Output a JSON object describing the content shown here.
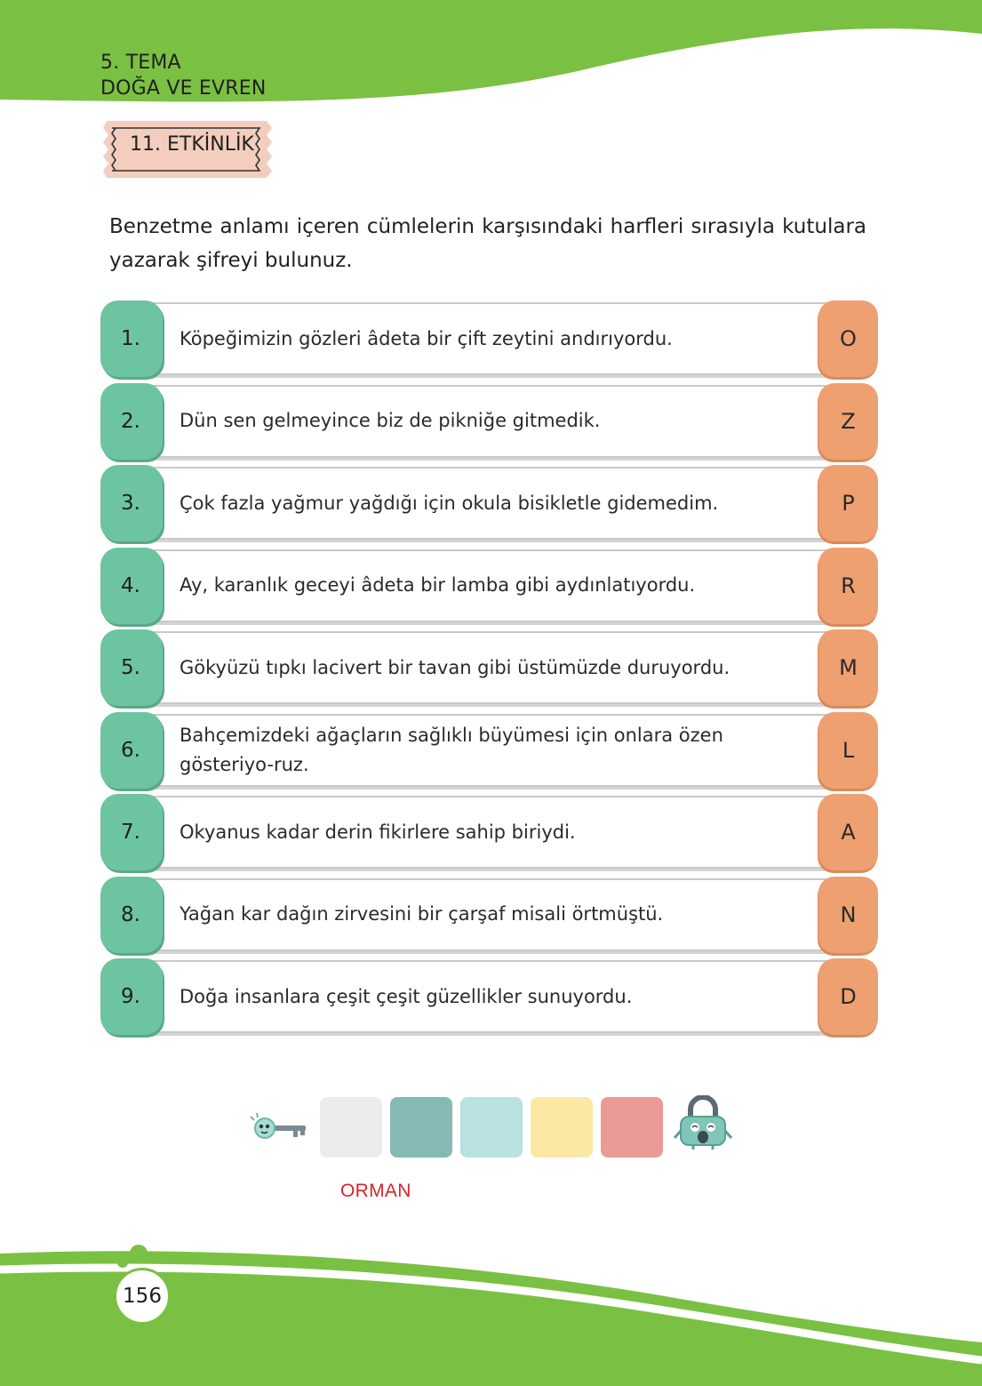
{
  "header": {
    "theme_line1": "5. TEMA",
    "theme_line2": "DOĞA VE EVREN"
  },
  "activity": {
    "label": "11. ETKİNLİK"
  },
  "instruction": "Benzetme anlamı içeren cümlelerin karşısındaki harfleri sırasıyla kutulara yazarak şifreyi bulunuz.",
  "items": [
    {
      "number": "1.",
      "sentence": "Köpeğimizin gözleri âdeta bir çift zeytini andırıyordu.",
      "letter": "O"
    },
    {
      "number": "2.",
      "sentence": "Dün sen gelmeyince biz de pikniğe gitmedik.",
      "letter": "Z"
    },
    {
      "number": "3.",
      "sentence": "Çok fazla yağmur yağdığı için okula bisikletle gidemedim.",
      "letter": "P"
    },
    {
      "number": "4.",
      "sentence": "Ay, karanlık geceyi âdeta bir lamba gibi aydınlatıyordu.",
      "letter": "R"
    },
    {
      "number": "5.",
      "sentence": "Gökyüzü tıpkı lacivert bir tavan gibi üstümüzde duruyordu.",
      "letter": "M"
    },
    {
      "number": "6.",
      "sentence": "Bahçemizdeki ağaçların sağlıklı büyümesi için onlara özen gösteriyo-ruz.",
      "letter": "L"
    },
    {
      "number": "7.",
      "sentence": "Okyanus kadar derin fikirlere sahip biriydi.",
      "letter": "A"
    },
    {
      "number": "8.",
      "sentence": "Yağan kar dağın zirvesini bir çarşaf misali örtmüştü.",
      "letter": "N"
    },
    {
      "number": "9.",
      "sentence": "Doğa insanlara çeşit çeşit güzellikler sunuyordu.",
      "letter": "D"
    }
  ],
  "answer_boxes": [
    "#ececea",
    "#86b8b4",
    "#b8e1e0",
    "#fbe9a3",
    "#ec9a98"
  ],
  "answer": "ORMAN",
  "page_number": "156",
  "colors": {
    "green": "#7ac143",
    "number_tab": "#6cc5a0",
    "letter_tab": "#eea070",
    "badge": "#f3cdbd",
    "answer_text": "#d8232a"
  },
  "icons": {
    "key": "key-icon",
    "lock": "padlock-icon"
  }
}
